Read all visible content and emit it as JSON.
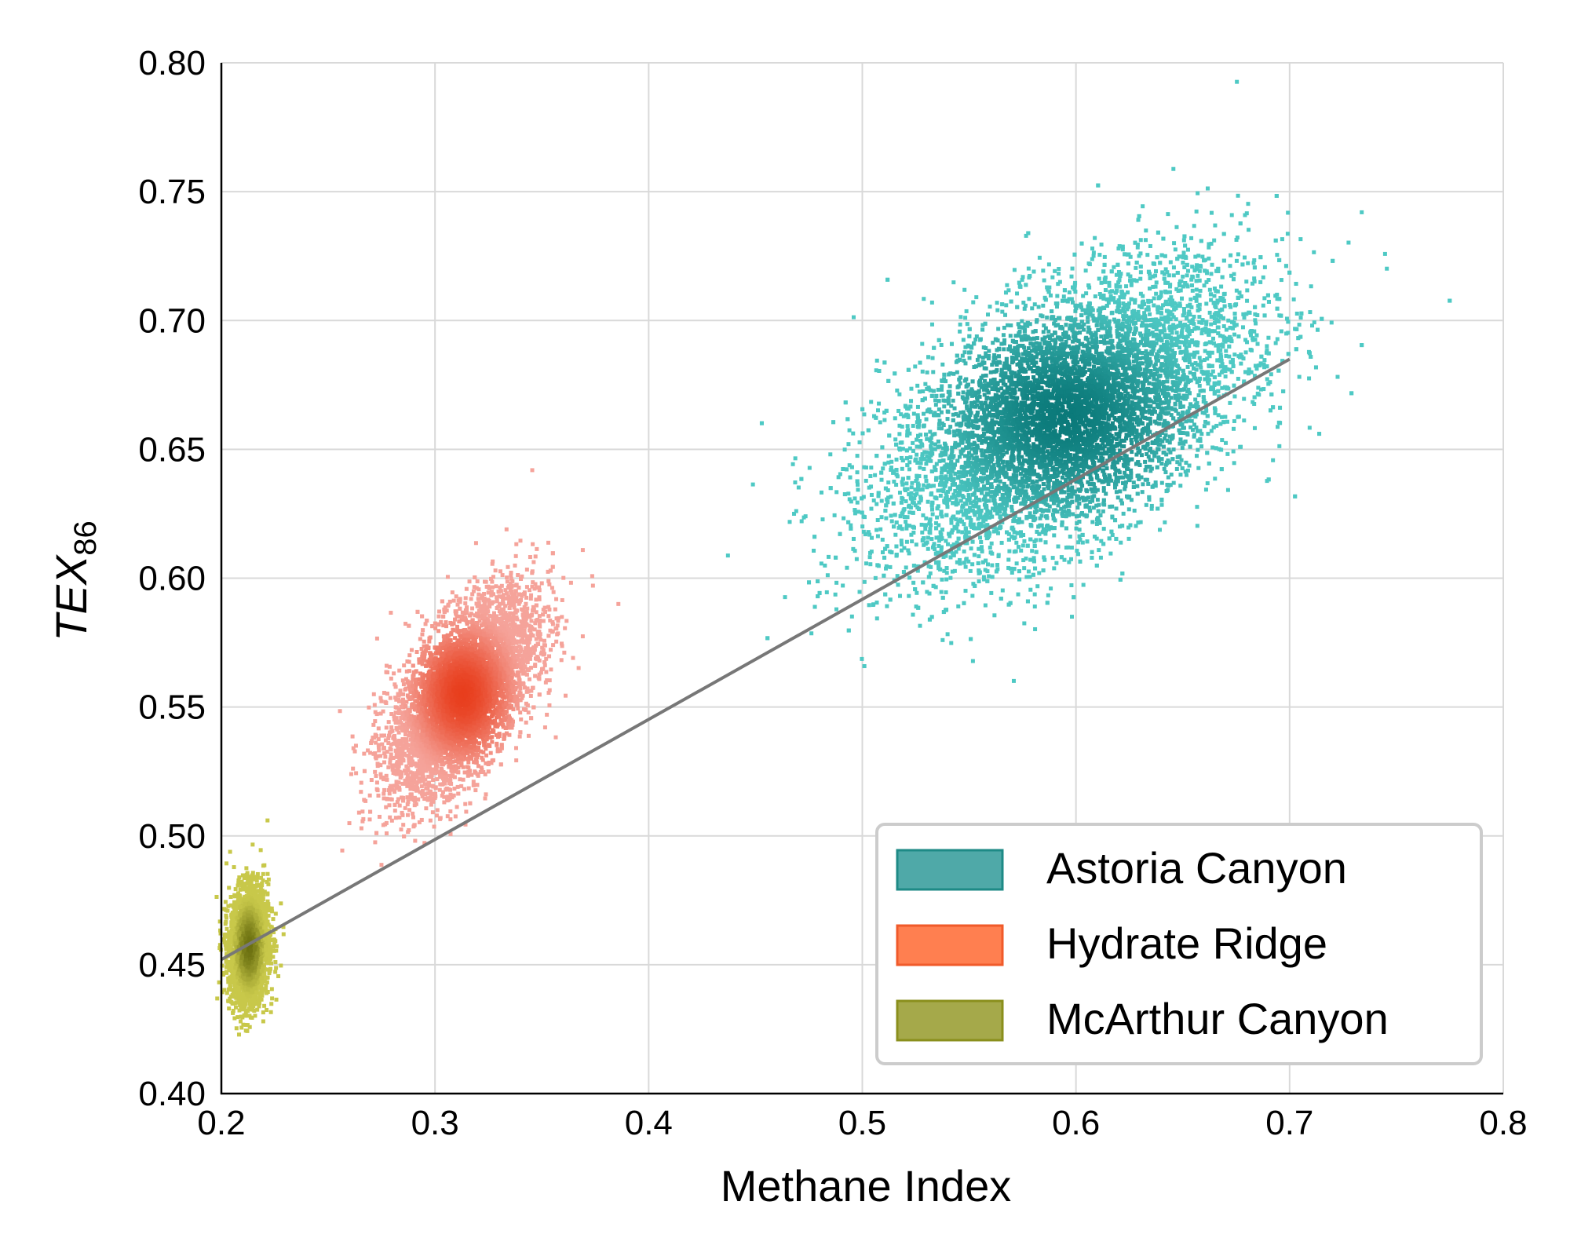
{
  "chart_data": {
    "type": "scatter",
    "title": "",
    "xlabel": "Methane Index",
    "ylabel": {
      "main": "TEX",
      "sub": "86"
    },
    "xlim": [
      0.2,
      0.8
    ],
    "ylim": [
      0.4,
      0.8
    ],
    "xticks": [
      "0.2",
      "0.3",
      "0.4",
      "0.5",
      "0.6",
      "0.7",
      "0.8"
    ],
    "yticks": [
      "0.40",
      "0.45",
      "0.50",
      "0.55",
      "0.60",
      "0.65",
      "0.70",
      "0.75",
      "0.80"
    ],
    "grid": true,
    "legend_position": "lower-right",
    "series": [
      {
        "name": "Astoria Canyon",
        "color": "#4ec9c4",
        "dark_color": "#0b7a7a",
        "legend_color": "#4fa9a8",
        "legend_edge": "#1e8a86",
        "center": [
          0.595,
          0.663
        ],
        "spread_x": 0.042,
        "spread_y": 0.028,
        "corr": 0.55,
        "count": 9000
      },
      {
        "name": "Hydrate Ridge",
        "color": "#f5a39a",
        "dark_color": "#e83e1d",
        "legend_color": "#ff7f50",
        "legend_edge": "#f05a2a",
        "center": [
          0.313,
          0.555
        ],
        "spread_x": 0.017,
        "spread_y": 0.019,
        "corr": 0.6,
        "count": 6000
      },
      {
        "name": "McArthur Canyon",
        "color": "#c8c84a",
        "dark_color": "#6b7010",
        "legend_color": "#a5a94a",
        "legend_edge": "#8a8f1c",
        "center": [
          0.213,
          0.457
        ],
        "spread_x": 0.0045,
        "spread_y": 0.011,
        "corr": 0.1,
        "count": 3000
      }
    ],
    "fit_line": {
      "x": [
        0.2,
        0.7
      ],
      "y": [
        0.452,
        0.685
      ],
      "color": "#777777"
    }
  }
}
